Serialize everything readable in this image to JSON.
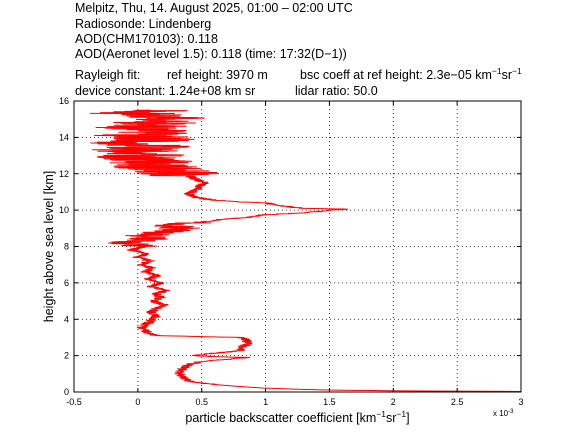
{
  "header": {
    "line1": "Melpitz, Thu, 14. August 2025, 01:00 – 02:00 UTC",
    "line2": "Radiosonde: Lindenberg",
    "line3": "AOD(CHM170103): 0.118",
    "line4": "AOD(Aeronet level 1.5): 0.118   (time: 17:32(D−1))",
    "rayleigh_label": "Rayleigh fit:",
    "ref_height": "ref height: 3970 m",
    "bsc_coeff_prefix": "bsc coeff at ref height: 2.3e−05 km",
    "bsc_coeff_sup1": "−1",
    "bsc_coeff_mid": "sr",
    "bsc_coeff_sup2": "−1",
    "device_constant": "device constant: 1.24e+08 km sr",
    "lidar_ratio": "lidar ratio: 50.0"
  },
  "chart_data": {
    "type": "line",
    "title": "",
    "xlabel_prefix": "particle backscatter coefficient [km",
    "xlabel_sup1": "−1",
    "xlabel_mid": "sr",
    "xlabel_sup2": "−1",
    "xlabel_suffix": "]",
    "ylabel": "height above sea level [km]",
    "x_scale_note": "x 10",
    "x_scale_exp": "-3",
    "xlim": [
      -0.5,
      3.0
    ],
    "ylim": [
      0,
      16
    ],
    "x_ticks": [
      -0.5,
      0,
      0.5,
      1,
      1.5,
      2,
      2.5,
      3
    ],
    "x_tick_labels": [
      "-0.5",
      "0",
      "0.5",
      "1",
      "1.5",
      "2",
      "2.5",
      "3"
    ],
    "y_ticks": [
      0,
      2,
      4,
      6,
      8,
      10,
      12,
      14,
      16
    ],
    "y_tick_labels": [
      "0",
      "2",
      "4",
      "6",
      "8",
      "10",
      "12",
      "14",
      "16"
    ],
    "grid": true,
    "series_color": "#ff0000",
    "series": [
      {
        "name": "",
        "profile": [
          [
            3.0,
            0.03
          ],
          [
            2.1,
            0.06
          ],
          [
            1.55,
            0.1
          ],
          [
            1.25,
            0.15
          ],
          [
            0.98,
            0.22
          ],
          [
            0.8,
            0.3
          ],
          [
            0.62,
            0.4
          ],
          [
            0.48,
            0.5
          ],
          [
            0.4,
            0.6
          ],
          [
            0.36,
            0.75
          ],
          [
            0.34,
            0.9
          ],
          [
            0.33,
            1.05
          ],
          [
            0.34,
            1.2
          ],
          [
            0.36,
            1.35
          ],
          [
            0.4,
            1.5
          ],
          [
            0.46,
            1.62
          ],
          [
            0.55,
            1.72
          ],
          [
            0.72,
            1.8
          ],
          [
            0.85,
            1.9
          ],
          [
            0.58,
            1.95
          ],
          [
            0.45,
            2.0
          ],
          [
            0.55,
            2.1
          ],
          [
            0.7,
            2.2
          ],
          [
            0.82,
            2.3
          ],
          [
            0.8,
            2.45
          ],
          [
            0.85,
            2.6
          ],
          [
            0.86,
            2.75
          ],
          [
            0.84,
            2.9
          ],
          [
            0.8,
            3.0
          ],
          [
            0.5,
            3.05
          ],
          [
            0.15,
            3.1
          ],
          [
            0.08,
            3.25
          ],
          [
            0.05,
            3.4
          ],
          [
            0.03,
            3.6
          ],
          [
            0.08,
            3.8
          ],
          [
            0.12,
            4.0
          ],
          [
            0.15,
            4.2
          ],
          [
            0.1,
            4.4
          ],
          [
            0.15,
            4.6
          ],
          [
            0.2,
            4.8
          ],
          [
            0.12,
            5.0
          ],
          [
            0.18,
            5.2
          ],
          [
            0.15,
            5.4
          ],
          [
            0.22,
            5.6
          ],
          [
            0.1,
            5.8
          ],
          [
            0.18,
            6.0
          ],
          [
            0.08,
            6.2
          ],
          [
            0.15,
            6.4
          ],
          [
            0.05,
            6.6
          ],
          [
            0.12,
            6.8
          ],
          [
            0.02,
            7.0
          ],
          [
            0.1,
            7.2
          ],
          [
            0.0,
            7.4
          ],
          [
            0.08,
            7.6
          ],
          [
            -0.05,
            7.8
          ],
          [
            0.05,
            8.0
          ],
          [
            -0.08,
            8.2
          ],
          [
            0.1,
            8.4
          ],
          [
            0.05,
            8.6
          ],
          [
            0.2,
            8.8
          ],
          [
            0.35,
            9.0
          ],
          [
            0.25,
            9.2
          ],
          [
            0.45,
            9.3
          ],
          [
            0.6,
            9.45
          ],
          [
            0.85,
            9.6
          ],
          [
            1.0,
            9.75
          ],
          [
            1.3,
            9.85
          ],
          [
            1.45,
            9.95
          ],
          [
            1.5,
            10.0
          ],
          [
            1.65,
            10.05
          ],
          [
            1.3,
            10.1
          ],
          [
            1.1,
            10.25
          ],
          [
            1.0,
            10.4
          ],
          [
            0.8,
            10.45
          ],
          [
            0.6,
            10.55
          ],
          [
            0.45,
            10.7
          ],
          [
            0.4,
            10.9
          ],
          [
            0.45,
            11.1
          ],
          [
            0.48,
            11.3
          ],
          [
            0.52,
            11.5
          ],
          [
            0.45,
            11.7
          ],
          [
            0.4,
            11.9
          ],
          [
            0.3,
            12.1
          ],
          [
            0.2,
            12.3
          ],
          [
            0.05,
            12.5
          ],
          [
            0.15,
            12.7
          ],
          [
            0.0,
            12.9
          ],
          [
            0.1,
            13.1
          ],
          [
            -0.05,
            13.3
          ],
          [
            0.08,
            13.5
          ],
          [
            -0.1,
            13.7
          ],
          [
            0.15,
            13.9
          ],
          [
            0.0,
            14.1
          ],
          [
            0.2,
            14.3
          ],
          [
            -0.05,
            14.5
          ],
          [
            0.18,
            14.7
          ],
          [
            0.05,
            14.9
          ],
          [
            0.3,
            15.1
          ],
          [
            -0.05,
            15.3
          ],
          [
            0.1,
            15.5
          ]
        ],
        "noise_segments": [
          [
            8.0,
            9.3,
            0.16
          ],
          [
            11.9,
            15.6,
            0.34
          ]
        ]
      }
    ]
  }
}
